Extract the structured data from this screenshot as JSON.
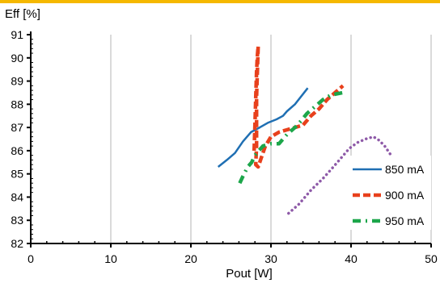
{
  "colors": {
    "top_band": "#f5b800",
    "background": "#ffffff",
    "gridline": "#b5b5b5",
    "axis": "#000000"
  },
  "chart_data": {
    "type": "line",
    "xlabel": "Pout [W]",
    "ylabel": "Eff [%]",
    "xlim": [
      0,
      50
    ],
    "ylim": [
      82,
      91
    ],
    "x_ticks": [
      0,
      10,
      20,
      30,
      40,
      50
    ],
    "y_ticks": [
      82,
      83,
      84,
      85,
      86,
      87,
      88,
      89,
      90,
      91
    ],
    "x_tick_labels": [
      "0",
      "10",
      "20",
      "30",
      "40",
      "50"
    ],
    "y_tick_labels": [
      "82",
      "83",
      "84",
      "85",
      "86",
      "87",
      "88",
      "89",
      "90",
      "91"
    ],
    "grid": {
      "vertical": true,
      "horizontal": false
    },
    "legend_position": "right",
    "series": [
      {
        "name": "850 mA",
        "color": "#1f6fb3",
        "style": "solid",
        "points": [
          [
            23.4,
            85.3
          ],
          [
            24.5,
            85.6
          ],
          [
            25.5,
            85.9
          ],
          [
            26.5,
            86.4
          ],
          [
            27.5,
            86.8
          ],
          [
            28.6,
            87.0
          ],
          [
            29.6,
            87.2
          ],
          [
            30.7,
            87.35
          ],
          [
            31.5,
            87.5
          ],
          [
            32.0,
            87.7
          ],
          [
            33.0,
            88.0
          ],
          [
            34.6,
            88.7
          ]
        ]
      },
      {
        "name": "900 mA",
        "color": "#e8401c",
        "style": "dashed",
        "points": [
          [
            27.9,
            86.0
          ],
          [
            28.0,
            87.1
          ],
          [
            28.1,
            88.3
          ],
          [
            28.2,
            89.4
          ],
          [
            28.3,
            90.1
          ],
          [
            28.4,
            90.5
          ],
          [
            28.2,
            88.3
          ],
          [
            28.2,
            86.2
          ],
          [
            28.1,
            85.4
          ],
          [
            28.4,
            85.3
          ],
          [
            28.8,
            85.7
          ],
          [
            29.3,
            86.2
          ],
          [
            30.0,
            86.6
          ],
          [
            31.0,
            86.8
          ],
          [
            32.0,
            86.9
          ],
          [
            33.0,
            87.0
          ],
          [
            34.0,
            87.1
          ],
          [
            35.0,
            87.5
          ],
          [
            36.0,
            87.8
          ],
          [
            37.0,
            88.2
          ],
          [
            38.0,
            88.5
          ],
          [
            39.0,
            88.8
          ]
        ]
      },
      {
        "name": "950 mA",
        "color": "#1ca64a",
        "style": "dash-dot",
        "points": [
          [
            26.1,
            84.6
          ],
          [
            26.5,
            84.9
          ],
          [
            27.1,
            85.3
          ],
          [
            27.6,
            85.5
          ],
          [
            28.0,
            85.8
          ],
          [
            28.5,
            86.0
          ],
          [
            29.0,
            86.2
          ],
          [
            30.0,
            86.3
          ],
          [
            31.0,
            86.3
          ],
          [
            32.0,
            86.7
          ],
          [
            33.0,
            87.0
          ],
          [
            33.8,
            87.3
          ],
          [
            34.5,
            87.6
          ],
          [
            35.5,
            87.9
          ],
          [
            36.5,
            88.2
          ],
          [
            37.5,
            88.4
          ],
          [
            39.0,
            88.5
          ]
        ]
      },
      {
        "name": "",
        "color": "#8e5aa8",
        "style": "dotted",
        "points": [
          [
            32.2,
            83.3
          ],
          [
            33.5,
            83.7
          ],
          [
            35.0,
            84.3
          ],
          [
            36.5,
            84.8
          ],
          [
            37.8,
            85.3
          ],
          [
            38.8,
            85.7
          ],
          [
            39.8,
            86.1
          ],
          [
            40.8,
            86.35
          ],
          [
            41.8,
            86.5
          ],
          [
            42.8,
            86.6
          ],
          [
            43.5,
            86.45
          ],
          [
            44.2,
            86.2
          ],
          [
            45.0,
            85.8
          ]
        ]
      }
    ]
  }
}
